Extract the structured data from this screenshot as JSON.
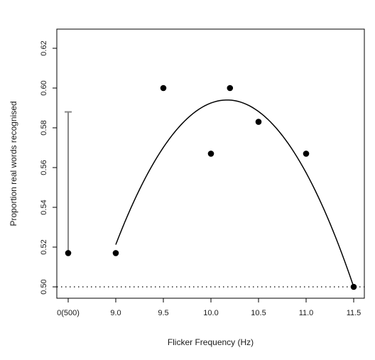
{
  "chart_data": {
    "type": "scatter",
    "xlabel": "Flicker Frequency (Hz)",
    "ylabel": "Proportion real words recognised",
    "x_categories": [
      "0(500)",
      "9.0",
      "9.5",
      "10.0",
      "10.5",
      "11.0",
      "11.5"
    ],
    "ylim": [
      0.497,
      0.632
    ],
    "y_ticks": [
      0.5,
      0.52,
      0.54,
      0.56,
      0.58,
      0.6,
      0.62
    ],
    "y_tick_labels": [
      "0.50",
      "0.52",
      "0.54",
      "0.56",
      "0.58",
      "0.60",
      "0.62"
    ],
    "points": [
      {
        "x": "0(500)",
        "y": 0.517
      },
      {
        "x": "9.0",
        "y": 0.517
      },
      {
        "x": "9.5",
        "y": 0.6
      },
      {
        "x": "10.0",
        "y": 0.567
      },
      {
        "x": "10.2",
        "y": 0.6
      },
      {
        "x": "10.5",
        "y": 0.583
      },
      {
        "x": "11.0",
        "y": 0.567
      },
      {
        "x": "11.5",
        "y": 0.5
      }
    ],
    "error_bar": {
      "x": "0(500)",
      "low": 0.517,
      "high": 0.588,
      "color": "#888888"
    },
    "reference_line": {
      "y": 0.5,
      "style": "dotted"
    },
    "fit_curve": {
      "type": "quadratic",
      "x_range": [
        9.0,
        11.5
      ],
      "peak": [
        10.17,
        0.594
      ],
      "end": [
        11.5,
        0.5
      ]
    },
    "grid": false,
    "legend": "none"
  }
}
